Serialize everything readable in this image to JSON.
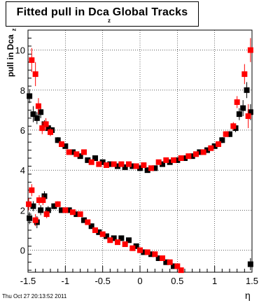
{
  "title": "Fitted pull in Dca",
  "title_tail": "Global Tracks",
  "title_subscript": "z",
  "ylabel": "pull in Dca",
  "ylabel_subscript": "z",
  "xlabel": "η",
  "datestamp": "Thu Oct 27 20:13:52 2011",
  "colors": {
    "series_black": "#000000",
    "series_red": "#ff0000",
    "grid": "#000000"
  },
  "chart_data": {
    "type": "scatter",
    "title": "Fitted pull in Dca Global Tracks",
    "xlabel": "η",
    "ylabel": "pull in Dca z",
    "xlim": [
      -1.5,
      1.5
    ],
    "ylim": [
      -1.1,
      11.0
    ],
    "xticks": [
      -1.5,
      -1,
      -0.5,
      0,
      0.5,
      1,
      1.5
    ],
    "xtick_labels": [
      "-1.5",
      "-1",
      "-0.5",
      "0",
      "0.5",
      "1",
      "1.5"
    ],
    "yticks": [
      0,
      2,
      4,
      6,
      8,
      10
    ],
    "ytick_labels": [
      "0",
      "2",
      "4",
      "6",
      "8",
      "10"
    ],
    "grid": true,
    "legend": "none",
    "series": [
      {
        "color": "black",
        "marker": "square",
        "points": [
          {
            "x": -1.48,
            "y": 7.7,
            "err": 0.35
          },
          {
            "x": -1.43,
            "y": 6.8,
            "err": 0.4
          },
          {
            "x": -1.38,
            "y": 6.6,
            "err": 0.3
          },
          {
            "x": -1.33,
            "y": 6.9,
            "err": 0.3
          },
          {
            "x": -1.28,
            "y": 6.3,
            "err": 0.2
          },
          {
            "x": -1.23,
            "y": 6.1,
            "err": 0.2
          },
          {
            "x": -1.18,
            "y": 6.0,
            "err": 0.15
          },
          {
            "x": -1.1,
            "y": 5.5,
            "err": 0.15
          },
          {
            "x": -1.0,
            "y": 5.2,
            "err": 0.12
          },
          {
            "x": -0.9,
            "y": 4.9,
            "err": 0.12
          },
          {
            "x": -0.8,
            "y": 4.7,
            "err": 0.1
          },
          {
            "x": -0.7,
            "y": 4.5,
            "err": 0.1
          },
          {
            "x": -0.6,
            "y": 4.6,
            "err": 0.1
          },
          {
            "x": -0.5,
            "y": 4.4,
            "err": 0.1
          },
          {
            "x": -0.4,
            "y": 4.3,
            "err": 0.1
          },
          {
            "x": -0.3,
            "y": 4.2,
            "err": 0.1
          },
          {
            "x": -0.2,
            "y": 4.15,
            "err": 0.1
          },
          {
            "x": -0.1,
            "y": 4.2,
            "err": 0.1
          },
          {
            "x": 0.0,
            "y": 4.1,
            "err": 0.1
          },
          {
            "x": 0.1,
            "y": 4.0,
            "err": 0.1
          },
          {
            "x": 0.2,
            "y": 4.1,
            "err": 0.1
          },
          {
            "x": 0.3,
            "y": 4.3,
            "err": 0.1
          },
          {
            "x": 0.4,
            "y": 4.4,
            "err": 0.1
          },
          {
            "x": 0.5,
            "y": 4.5,
            "err": 0.1
          },
          {
            "x": 0.6,
            "y": 4.6,
            "err": 0.1
          },
          {
            "x": 0.7,
            "y": 4.7,
            "err": 0.1
          },
          {
            "x": 0.8,
            "y": 4.9,
            "err": 0.1
          },
          {
            "x": 0.9,
            "y": 5.0,
            "err": 0.12
          },
          {
            "x": 1.0,
            "y": 5.2,
            "err": 0.12
          },
          {
            "x": 1.1,
            "y": 5.5,
            "err": 0.15
          },
          {
            "x": 1.2,
            "y": 5.8,
            "err": 0.15
          },
          {
            "x": 1.28,
            "y": 6.1,
            "err": 0.2
          },
          {
            "x": 1.33,
            "y": 6.8,
            "err": 0.3
          },
          {
            "x": 1.38,
            "y": 7.1,
            "err": 0.4
          },
          {
            "x": 1.43,
            "y": 8.0,
            "err": 0.4
          },
          {
            "x": 1.48,
            "y": 6.9,
            "err": 0.4
          },
          {
            "x": -1.48,
            "y": 1.6,
            "err": 0.3
          },
          {
            "x": -1.43,
            "y": 2.2,
            "err": 0.25
          },
          {
            "x": -1.38,
            "y": 1.4,
            "err": 0.3
          },
          {
            "x": -1.33,
            "y": 2.0,
            "err": 0.25
          },
          {
            "x": -1.28,
            "y": 2.7,
            "err": 0.25
          },
          {
            "x": -1.23,
            "y": 2.0,
            "err": 0.2
          },
          {
            "x": -1.15,
            "y": 2.2,
            "err": 0.15
          },
          {
            "x": -1.05,
            "y": 2.0,
            "err": 0.12
          },
          {
            "x": -0.95,
            "y": 2.0,
            "err": 0.12
          },
          {
            "x": -0.85,
            "y": 1.8,
            "err": 0.1
          },
          {
            "x": -0.75,
            "y": 1.5,
            "err": 0.1
          },
          {
            "x": -0.65,
            "y": 1.2,
            "err": 0.1
          },
          {
            "x": -0.55,
            "y": 0.9,
            "err": 0.1
          },
          {
            "x": -0.45,
            "y": 0.7,
            "err": 0.1
          },
          {
            "x": -0.35,
            "y": 0.6,
            "err": 0.1
          },
          {
            "x": -0.25,
            "y": 0.6,
            "err": 0.1
          },
          {
            "x": -0.15,
            "y": 0.5,
            "err": 0.1
          },
          {
            "x": -0.05,
            "y": 0.2,
            "err": 0.1
          },
          {
            "x": 0.05,
            "y": -0.1,
            "err": 0.1
          },
          {
            "x": 0.15,
            "y": -0.2,
            "err": 0.1
          },
          {
            "x": 0.25,
            "y": -0.4,
            "err": 0.1
          },
          {
            "x": 0.35,
            "y": -0.6,
            "err": 0.1
          },
          {
            "x": 0.45,
            "y": -0.8,
            "err": 0.1
          },
          {
            "x": 1.48,
            "y": -0.7,
            "err": 0.3
          }
        ]
      },
      {
        "color": "red",
        "marker": "square",
        "points": [
          {
            "x": -1.45,
            "y": 9.5,
            "err": 0.6
          },
          {
            "x": -1.4,
            "y": 8.8,
            "err": 0.6
          },
          {
            "x": -1.36,
            "y": 7.2,
            "err": 0.4
          },
          {
            "x": -1.31,
            "y": 6.1,
            "err": 0.3
          },
          {
            "x": -1.26,
            "y": 6.3,
            "err": 0.3
          },
          {
            "x": -1.2,
            "y": 5.9,
            "err": 0.2
          },
          {
            "x": -1.05,
            "y": 5.3,
            "err": 0.15
          },
          {
            "x": -0.95,
            "y": 4.9,
            "err": 0.12
          },
          {
            "x": -0.85,
            "y": 4.8,
            "err": 0.12
          },
          {
            "x": -0.75,
            "y": 4.9,
            "err": 0.1
          },
          {
            "x": -0.65,
            "y": 4.4,
            "err": 0.1
          },
          {
            "x": -0.55,
            "y": 4.3,
            "err": 0.1
          },
          {
            "x": -0.45,
            "y": 4.25,
            "err": 0.1
          },
          {
            "x": -0.35,
            "y": 4.3,
            "err": 0.1
          },
          {
            "x": -0.25,
            "y": 4.3,
            "err": 0.1
          },
          {
            "x": -0.15,
            "y": 4.3,
            "err": 0.1
          },
          {
            "x": -0.05,
            "y": 4.2,
            "err": 0.1
          },
          {
            "x": 0.05,
            "y": 4.25,
            "err": 0.1
          },
          {
            "x": 0.15,
            "y": 4.1,
            "err": 0.1
          },
          {
            "x": 0.25,
            "y": 4.4,
            "err": 0.1
          },
          {
            "x": 0.35,
            "y": 4.5,
            "err": 0.1
          },
          {
            "x": 0.45,
            "y": 4.5,
            "err": 0.1
          },
          {
            "x": 0.55,
            "y": 4.6,
            "err": 0.1
          },
          {
            "x": 0.65,
            "y": 4.7,
            "err": 0.1
          },
          {
            "x": 0.75,
            "y": 4.8,
            "err": 0.1
          },
          {
            "x": 0.85,
            "y": 4.9,
            "err": 0.12
          },
          {
            "x": 0.95,
            "y": 5.1,
            "err": 0.12
          },
          {
            "x": 1.05,
            "y": 5.3,
            "err": 0.15
          },
          {
            "x": 1.15,
            "y": 5.8,
            "err": 0.15
          },
          {
            "x": 1.25,
            "y": 6.2,
            "err": 0.2
          },
          {
            "x": 1.3,
            "y": 7.4,
            "err": 0.3
          },
          {
            "x": 1.4,
            "y": 8.8,
            "err": 0.5
          },
          {
            "x": 1.45,
            "y": 6.7,
            "err": 0.6
          },
          {
            "x": 1.48,
            "y": 10.0,
            "err": 0.6
          },
          {
            "x": -1.49,
            "y": 2.3,
            "err": 0.3
          },
          {
            "x": -1.45,
            "y": 3.0,
            "err": 0.3
          },
          {
            "x": -1.4,
            "y": 1.5,
            "err": 0.3
          },
          {
            "x": -1.35,
            "y": 2.5,
            "err": 0.25
          },
          {
            "x": -1.3,
            "y": 2.5,
            "err": 0.25
          },
          {
            "x": -1.25,
            "y": 1.8,
            "err": 0.2
          },
          {
            "x": -1.1,
            "y": 2.3,
            "err": 0.15
          },
          {
            "x": -1.0,
            "y": 2.0,
            "err": 0.12
          },
          {
            "x": -0.9,
            "y": 1.9,
            "err": 0.12
          },
          {
            "x": -0.8,
            "y": 1.8,
            "err": 0.1
          },
          {
            "x": -0.7,
            "y": 1.4,
            "err": 0.1
          },
          {
            "x": -0.6,
            "y": 1.0,
            "err": 0.1
          },
          {
            "x": -0.5,
            "y": 0.8,
            "err": 0.1
          },
          {
            "x": -0.4,
            "y": 0.5,
            "err": 0.1
          },
          {
            "x": -0.3,
            "y": 0.4,
            "err": 0.1
          },
          {
            "x": -0.2,
            "y": 0.3,
            "err": 0.1
          },
          {
            "x": -0.1,
            "y": 0.1,
            "err": 0.1
          },
          {
            "x": 0.0,
            "y": 0.0,
            "err": 0.1
          },
          {
            "x": 0.1,
            "y": -0.1,
            "err": 0.1
          },
          {
            "x": 0.2,
            "y": -0.2,
            "err": 0.1
          },
          {
            "x": 0.3,
            "y": -0.4,
            "err": 0.1
          },
          {
            "x": 0.4,
            "y": -0.6,
            "err": 0.1
          },
          {
            "x": 0.5,
            "y": -0.8,
            "err": 0.1
          },
          {
            "x": 0.55,
            "y": -1.0,
            "err": 0.1
          }
        ]
      }
    ]
  }
}
